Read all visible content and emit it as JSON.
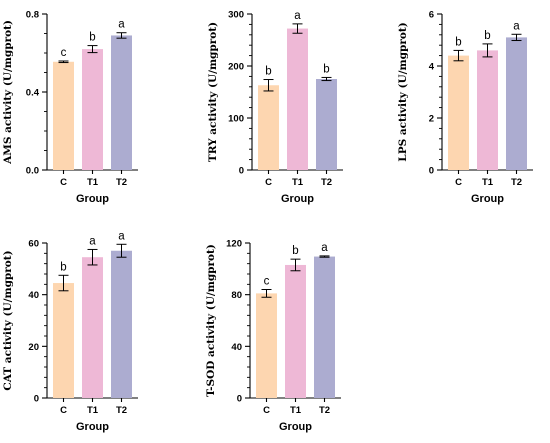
{
  "chart_data": [
    {
      "type": "bar",
      "ylabel": "AMS activity (U/mgprot)",
      "xlabel": "Group",
      "categories": [
        "C",
        "T1",
        "T2"
      ],
      "values": [
        0.555,
        0.62,
        0.69
      ],
      "errors": [
        0.004,
        0.018,
        0.014
      ],
      "labels": [
        "c",
        "b",
        "a"
      ],
      "ylim": [
        0,
        0.8
      ],
      "yticks": [
        0.0,
        0.4,
        0.8
      ],
      "ytick_labels": [
        "0.0",
        "0.4",
        "0.8"
      ]
    },
    {
      "type": "bar",
      "ylabel": "TRY activity (U/mgprot)",
      "xlabel": "Group",
      "categories": [
        "C",
        "T1",
        "T2"
      ],
      "values": [
        163,
        272,
        175
      ],
      "errors": [
        11,
        9,
        3
      ],
      "labels": [
        "b",
        "a",
        "b"
      ],
      "ylim": [
        0,
        300
      ],
      "yticks": [
        0,
        100,
        200,
        300
      ],
      "ytick_labels": [
        "0",
        "100",
        "200",
        "300"
      ]
    },
    {
      "type": "bar",
      "ylabel": "LPS activity (U/mgprot)",
      "xlabel": "Group",
      "categories": [
        "C",
        "T1",
        "T2"
      ],
      "values": [
        4.4,
        4.6,
        5.1
      ],
      "errors": [
        0.2,
        0.25,
        0.12
      ],
      "labels": [
        "b",
        "b",
        "a"
      ],
      "ylim": [
        0,
        6
      ],
      "yticks": [
        0,
        2,
        4,
        6
      ],
      "ytick_labels": [
        "0",
        "2",
        "4",
        "6"
      ]
    },
    {
      "type": "bar",
      "ylabel": "CAT activity (U/mgprot)",
      "xlabel": "Group",
      "categories": [
        "C",
        "T1",
        "T2"
      ],
      "values": [
        44.5,
        54.5,
        57
      ],
      "errors": [
        3,
        3,
        2.5
      ],
      "labels": [
        "b",
        "a",
        "a"
      ],
      "ylim": [
        0,
        60
      ],
      "yticks": [
        0,
        20,
        40,
        60
      ],
      "ytick_labels": [
        "0",
        "20",
        "40",
        "60"
      ]
    },
    {
      "type": "bar",
      "ylabel": "T-SOD activity (U/mgprot)",
      "xlabel": "Group",
      "categories": [
        "C",
        "T1",
        "T2"
      ],
      "values": [
        81,
        103,
        109.5
      ],
      "errors": [
        3,
        4.5,
        0.5
      ],
      "labels": [
        "c",
        "b",
        "a"
      ],
      "ylim": [
        0,
        120
      ],
      "yticks": [
        0,
        40,
        80,
        120
      ],
      "ytick_labels": [
        "0",
        "40",
        "80",
        "120"
      ]
    }
  ],
  "bar_colors": [
    "#fdd6b0",
    "#eeb8d6",
    "#acacd0"
  ]
}
